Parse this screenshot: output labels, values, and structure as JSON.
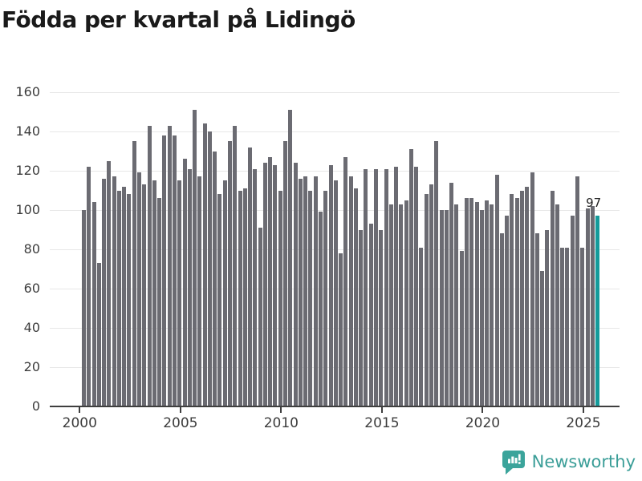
{
  "title": "Födda per kvartal på Lidingö",
  "chart_data": {
    "type": "bar",
    "title": "Födda per kvartal på Lidingö",
    "xlabel": "",
    "ylabel": "",
    "ylim": [
      0,
      160
    ],
    "yticks": [
      0,
      20,
      40,
      60,
      80,
      100,
      120,
      140,
      160
    ],
    "xticks": [
      "2000",
      "2005",
      "2010",
      "2015",
      "2020",
      "2025"
    ],
    "grid": true,
    "legend": "none",
    "bar_color": "#6b6b72",
    "categories": [
      "2000 Q1",
      "2000 Q2",
      "2000 Q3",
      "2000 Q4",
      "2001 Q1",
      "2001 Q2",
      "2001 Q3",
      "2001 Q4",
      "2002 Q1",
      "2002 Q2",
      "2002 Q3",
      "2002 Q4",
      "2003 Q1",
      "2003 Q2",
      "2003 Q3",
      "2003 Q4",
      "2004 Q1",
      "2004 Q2",
      "2004 Q3",
      "2004 Q4",
      "2005 Q1",
      "2005 Q2",
      "2005 Q3",
      "2005 Q4",
      "2006 Q1",
      "2006 Q2",
      "2006 Q3",
      "2006 Q4",
      "2007 Q1",
      "2007 Q2",
      "2007 Q3",
      "2007 Q4",
      "2008 Q1",
      "2008 Q2",
      "2008 Q3",
      "2008 Q4",
      "2009 Q1",
      "2009 Q2",
      "2009 Q3",
      "2009 Q4",
      "2010 Q1",
      "2010 Q2",
      "2010 Q3",
      "2010 Q4",
      "2011 Q1",
      "2011 Q2",
      "2011 Q3",
      "2011 Q4",
      "2012 Q1",
      "2012 Q2",
      "2012 Q3",
      "2012 Q4",
      "2013 Q1",
      "2013 Q2",
      "2013 Q3",
      "2013 Q4",
      "2014 Q1",
      "2014 Q2",
      "2014 Q3",
      "2014 Q4",
      "2015 Q1",
      "2015 Q2",
      "2015 Q3",
      "2015 Q4",
      "2016 Q1",
      "2016 Q2",
      "2016 Q3",
      "2016 Q4",
      "2017 Q1",
      "2017 Q2",
      "2017 Q3",
      "2017 Q4",
      "2018 Q1",
      "2018 Q2",
      "2018 Q3",
      "2018 Q4",
      "2019 Q1",
      "2019 Q2",
      "2019 Q3",
      "2019 Q4",
      "2020 Q1",
      "2020 Q2",
      "2020 Q3",
      "2020 Q4",
      "2021 Q1",
      "2021 Q2",
      "2021 Q3",
      "2021 Q4",
      "2022 Q1",
      "2022 Q2",
      "2022 Q3",
      "2022 Q4",
      "2023 Q1",
      "2023 Q2",
      "2023 Q3",
      "2023 Q4",
      "2024 Q1",
      "2024 Q2",
      "2024 Q3",
      "2024 Q4",
      "2025 Q1",
      "2025 Q2",
      "2025 Q3"
    ],
    "values": [
      100,
      122,
      104,
      73,
      116,
      125,
      117,
      110,
      112,
      108,
      135,
      119,
      113,
      143,
      115,
      106,
      138,
      143,
      138,
      115,
      126,
      121,
      151,
      117,
      144,
      140,
      130,
      108,
      115,
      135,
      143,
      110,
      111,
      132,
      121,
      91,
      124,
      127,
      123,
      110,
      135,
      151,
      124,
      116,
      117,
      110,
      117,
      99,
      110,
      123,
      115,
      78,
      127,
      117,
      111,
      90,
      121,
      93,
      121,
      90,
      121,
      103,
      122,
      103,
      105,
      131,
      122,
      81,
      108,
      113,
      135,
      100,
      100,
      114,
      103,
      79,
      106,
      106,
      104,
      100,
      105,
      103,
      118,
      88,
      97,
      108,
      106,
      110,
      112,
      119,
      88,
      69,
      90,
      110,
      103,
      81,
      81,
      97,
      117,
      81,
      101,
      102,
      97
    ],
    "highlight": {
      "index": 102,
      "label": "97",
      "color": "#149b9b"
    }
  },
  "footer": {
    "brand": "Newsworthy",
    "brand_color": "#3b9e98",
    "logo_icon": "newsworthy-speech-bubble-barchart-icon"
  }
}
